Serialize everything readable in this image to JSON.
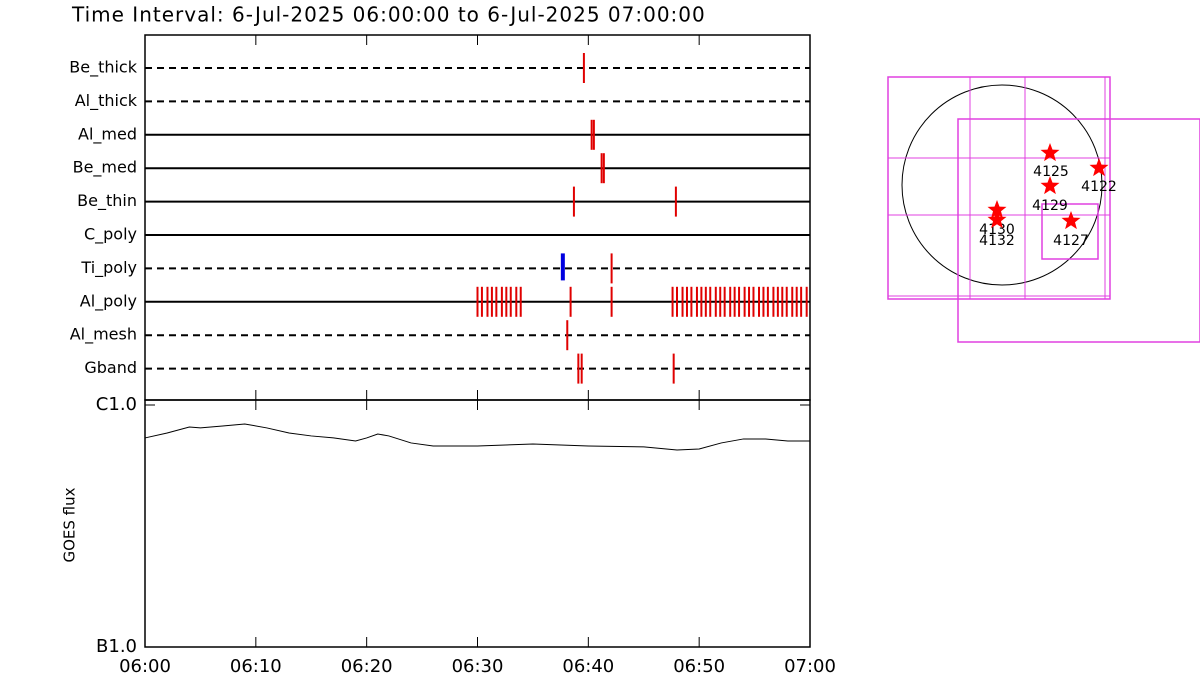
{
  "title": "Time Interval:  6-Jul-2025 06:00:00 to  6-Jul-2025 07:00:00",
  "timeline": {
    "xlim": [
      0,
      60
    ],
    "xticks": [
      {
        "value": 0,
        "label": "06:00"
      },
      {
        "value": 10,
        "label": "06:10"
      },
      {
        "value": 20,
        "label": "06:20"
      },
      {
        "value": 30,
        "label": "06:30"
      },
      {
        "value": 40,
        "label": "06:40"
      },
      {
        "value": 50,
        "label": "06:50"
      },
      {
        "value": 60,
        "label": "07:00"
      }
    ],
    "event_color": "#e00000",
    "filters": [
      {
        "name": "Be_thick",
        "line": "dashed",
        "events": [
          39.6
        ]
      },
      {
        "name": "Al_thick",
        "line": "dashed",
        "events": []
      },
      {
        "name": "Al_med",
        "line": "solid",
        "events": [
          40.3,
          40.5
        ]
      },
      {
        "name": "Be_med",
        "line": "solid",
        "events": [
          41.2,
          41.4
        ]
      },
      {
        "name": "Be_thin",
        "line": "solid",
        "events": [
          38.7,
          47.9
        ]
      },
      {
        "name": "C_poly",
        "line": "solid",
        "events": []
      },
      {
        "name": "Ti_poly",
        "line": "dashed",
        "events": [
          42.1
        ],
        "highlight": [
          37.7
        ],
        "highlight_color": "#0000e0"
      },
      {
        "name": "Al_poly",
        "line": "solid",
        "events": [
          30.0,
          30.4,
          30.9,
          31.3,
          31.7,
          32.2,
          32.6,
          33.0,
          33.5,
          33.9,
          38.4,
          42.1,
          47.6,
          48.0,
          48.5,
          48.9,
          49.3,
          49.8,
          50.2,
          50.6,
          51.0,
          51.5,
          51.9,
          52.3,
          52.8,
          53.2,
          53.6,
          54.1,
          54.5,
          54.9,
          55.4,
          55.8,
          56.2,
          56.7,
          57.1,
          57.5,
          57.9,
          58.4,
          58.8,
          59.2,
          59.7
        ]
      },
      {
        "name": "Al_mesh",
        "line": "dashed",
        "events": [
          38.1
        ]
      },
      {
        "name": "Gband",
        "line": "dashed",
        "events": [
          39.1,
          39.4,
          47.7
        ]
      }
    ]
  },
  "goes": {
    "ylabel": "GOES flux",
    "log": true,
    "ylim": [
      1e-07,
      1e-06
    ],
    "yticks": [
      {
        "value": 1e-06,
        "label": "C1.0"
      },
      {
        "value": 1e-07,
        "label": "B1.0"
      }
    ],
    "x": [
      0,
      2,
      4,
      5,
      7,
      9,
      11,
      13,
      15,
      17,
      19,
      20,
      21,
      22,
      24,
      26,
      30,
      35,
      40,
      45,
      48,
      50,
      52,
      54,
      56,
      58,
      60
    ],
    "flux": [
      7.31e-07,
      7.66e-07,
      8.11e-07,
      8.04e-07,
      8.19e-07,
      8.35e-07,
      8.04e-07,
      7.66e-07,
      7.45e-07,
      7.31e-07,
      7.1e-07,
      7.31e-07,
      7.59e-07,
      7.45e-07,
      6.97e-07,
      6.77e-07,
      6.77e-07,
      6.9e-07,
      6.77e-07,
      6.71e-07,
      6.52e-07,
      6.58e-07,
      6.97e-07,
      7.24e-07,
      7.24e-07,
      7.1e-07,
      7.1e-07
    ],
    "color": "#000000"
  },
  "map": {
    "regions": [
      "4125",
      "4122",
      "4129",
      "4127",
      "4130",
      "4132"
    ],
    "star_color": "#ff0000",
    "box_color": "#e040e0"
  }
}
